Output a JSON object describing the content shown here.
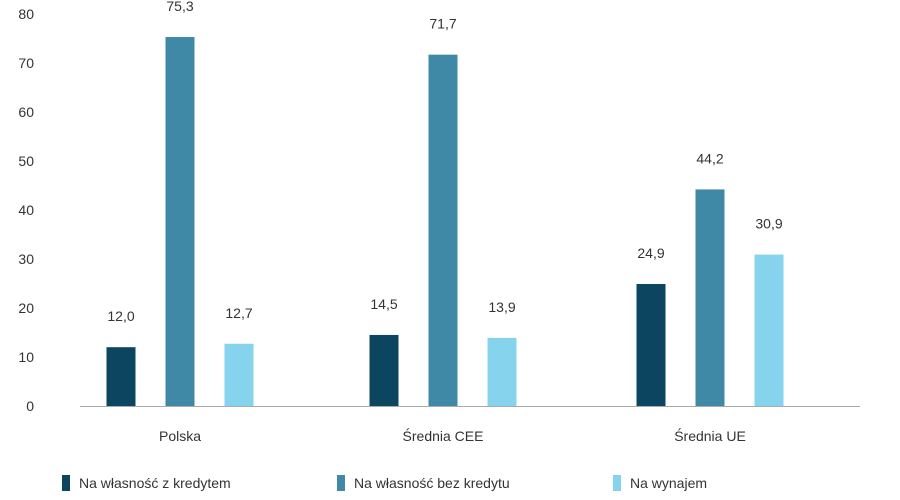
{
  "chart_data": {
    "type": "bar",
    "title": "",
    "xlabel": "",
    "ylabel": "",
    "categories": [
      "Polska",
      "Średnia CEE",
      "Średnia UE"
    ],
    "series": [
      {
        "name": "Na własność z kredytem",
        "color": "#0b4560",
        "values": [
          12.0,
          14.5,
          24.9
        ],
        "labels": [
          "12,0",
          "14,5",
          "24,9"
        ]
      },
      {
        "name": "Na własność bez kredytu",
        "color": "#3f88a6",
        "values": [
          75.3,
          71.7,
          44.2
        ],
        "labels": [
          "75,3",
          "71,7",
          "44,2"
        ]
      },
      {
        "name": "Na wynajem",
        "color": "#86d3ee",
        "values": [
          12.7,
          13.9,
          30.9
        ],
        "labels": [
          "12,7",
          "13,9",
          "30,9"
        ]
      }
    ],
    "ylim": [
      0,
      80
    ],
    "yticks": [
      0,
      10,
      20,
      30,
      40,
      50,
      60,
      70,
      80
    ],
    "grid": false,
    "legend_position": "bottom"
  }
}
